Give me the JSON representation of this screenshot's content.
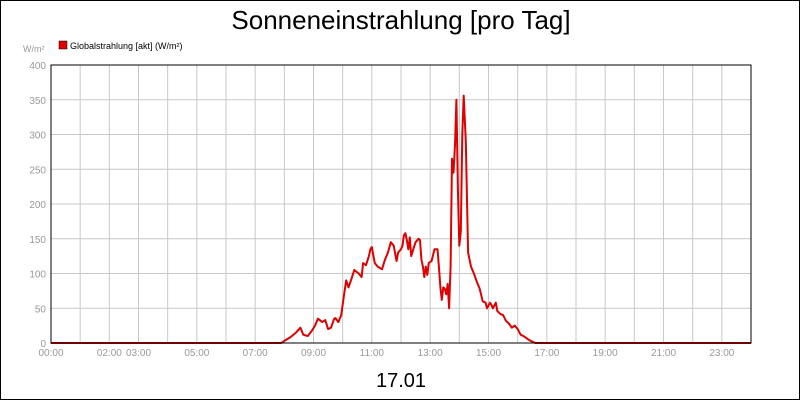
{
  "chart_data": {
    "type": "line",
    "title": "Sonneneinstrahlung [pro Tag]",
    "ylabel": "W/m²",
    "xlabel": "17.01",
    "xlim": [
      0,
      24
    ],
    "ylim": [
      0,
      400
    ],
    "yticks": [
      0,
      50,
      100,
      150,
      200,
      250,
      300,
      350,
      400
    ],
    "xticks": [
      {
        "x": 0,
        "label": "00:00"
      },
      {
        "x": 2,
        "label": "02:00"
      },
      {
        "x": 3,
        "label": "03:00"
      },
      {
        "x": 5,
        "label": "05:00"
      },
      {
        "x": 7,
        "label": "07:00"
      },
      {
        "x": 9,
        "label": "09:00"
      },
      {
        "x": 11,
        "label": "11:00"
      },
      {
        "x": 13,
        "label": "13:00"
      },
      {
        "x": 15,
        "label": "15:00"
      },
      {
        "x": 17,
        "label": "17:00"
      },
      {
        "x": 19,
        "label": "19:00"
      },
      {
        "x": 21,
        "label": "21:00"
      },
      {
        "x": 23,
        "label": "23:00"
      }
    ],
    "grid": true,
    "legend_position": "top-left",
    "series": [
      {
        "name": "Globalstrahlung [akt] (W/m²)",
        "color": "#e00000",
        "points": [
          [
            0,
            0
          ],
          [
            7.9,
            0
          ],
          [
            8.0,
            3
          ],
          [
            8.2,
            8
          ],
          [
            8.4,
            15
          ],
          [
            8.55,
            22
          ],
          [
            8.65,
            12
          ],
          [
            8.8,
            10
          ],
          [
            8.95,
            18
          ],
          [
            9.05,
            25
          ],
          [
            9.15,
            35
          ],
          [
            9.3,
            30
          ],
          [
            9.4,
            33
          ],
          [
            9.5,
            20
          ],
          [
            9.6,
            22
          ],
          [
            9.7,
            34
          ],
          [
            9.75,
            36
          ],
          [
            9.85,
            30
          ],
          [
            9.95,
            40
          ],
          [
            10.05,
            70
          ],
          [
            10.12,
            90
          ],
          [
            10.2,
            80
          ],
          [
            10.3,
            92
          ],
          [
            10.4,
            105
          ],
          [
            10.55,
            100
          ],
          [
            10.65,
            95
          ],
          [
            10.7,
            115
          ],
          [
            10.8,
            112
          ],
          [
            10.9,
            125
          ],
          [
            10.95,
            135
          ],
          [
            11.0,
            138
          ],
          [
            11.1,
            115
          ],
          [
            11.2,
            110
          ],
          [
            11.35,
            106
          ],
          [
            11.45,
            120
          ],
          [
            11.55,
            130
          ],
          [
            11.65,
            145
          ],
          [
            11.75,
            140
          ],
          [
            11.8,
            128
          ],
          [
            11.85,
            118
          ],
          [
            11.9,
            130
          ],
          [
            12.0,
            135
          ],
          [
            12.05,
            140
          ],
          [
            12.1,
            155
          ],
          [
            12.15,
            158
          ],
          [
            12.2,
            148
          ],
          [
            12.25,
            135
          ],
          [
            12.3,
            152
          ],
          [
            12.35,
            125
          ],
          [
            12.42,
            135
          ],
          [
            12.5,
            145
          ],
          [
            12.6,
            150
          ],
          [
            12.65,
            148
          ],
          [
            12.7,
            120
          ],
          [
            12.75,
            110
          ],
          [
            12.8,
            95
          ],
          [
            12.85,
            110
          ],
          [
            12.9,
            98
          ],
          [
            12.95,
            115
          ],
          [
            13.05,
            118
          ],
          [
            13.15,
            135
          ],
          [
            13.25,
            135
          ],
          [
            13.3,
            110
          ],
          [
            13.35,
            80
          ],
          [
            13.4,
            62
          ],
          [
            13.45,
            80
          ],
          [
            13.5,
            78
          ],
          [
            13.55,
            70
          ],
          [
            13.6,
            85
          ],
          [
            13.65,
            50
          ],
          [
            13.7,
            110
          ],
          [
            13.75,
            265
          ],
          [
            13.8,
            245
          ],
          [
            13.85,
            285
          ],
          [
            13.9,
            350
          ],
          [
            13.95,
            220
          ],
          [
            14.0,
            140
          ],
          [
            14.05,
            160
          ],
          [
            14.1,
            300
          ],
          [
            14.15,
            356
          ],
          [
            14.22,
            290
          ],
          [
            14.3,
            130
          ],
          [
            14.4,
            110
          ],
          [
            14.5,
            100
          ],
          [
            14.6,
            88
          ],
          [
            14.7,
            78
          ],
          [
            14.8,
            60
          ],
          [
            14.9,
            58
          ],
          [
            14.95,
            50
          ],
          [
            15.05,
            58
          ],
          [
            15.1,
            55
          ],
          [
            15.15,
            50
          ],
          [
            15.25,
            58
          ],
          [
            15.3,
            46
          ],
          [
            15.4,
            42
          ],
          [
            15.5,
            40
          ],
          [
            15.6,
            32
          ],
          [
            15.7,
            28
          ],
          [
            15.8,
            22
          ],
          [
            15.9,
            25
          ],
          [
            16.0,
            20
          ],
          [
            16.1,
            12
          ],
          [
            16.2,
            10
          ],
          [
            16.3,
            7
          ],
          [
            16.4,
            4
          ],
          [
            16.5,
            2
          ],
          [
            16.6,
            0
          ],
          [
            24,
            0
          ]
        ]
      }
    ]
  }
}
